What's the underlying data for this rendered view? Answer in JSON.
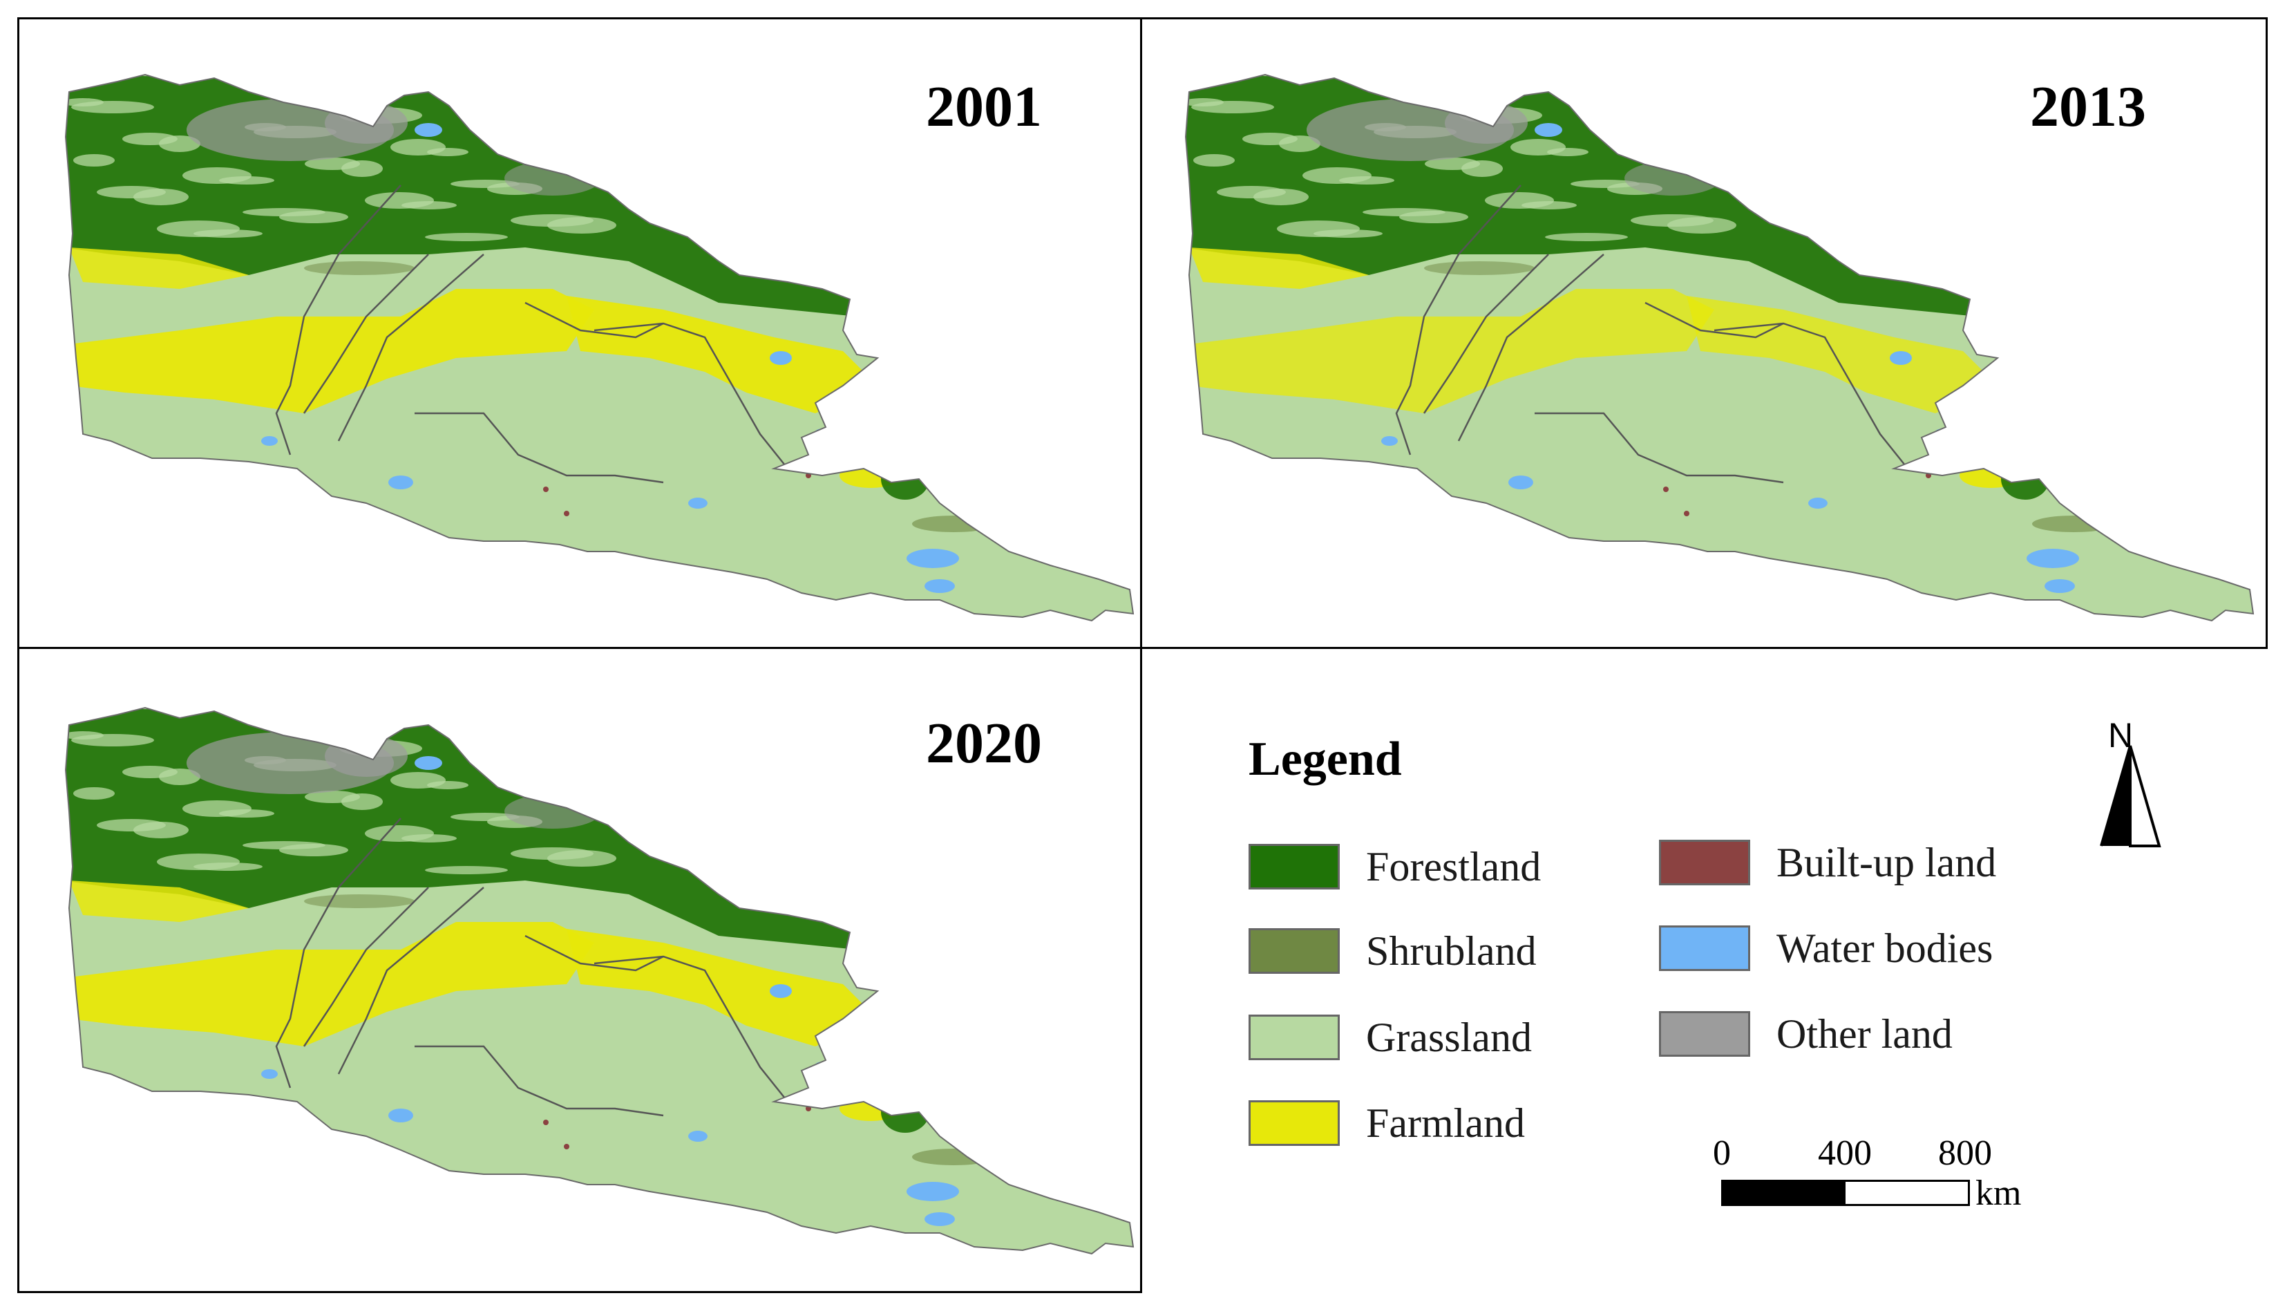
{
  "colors": {
    "forestland": "#1f7307",
    "shrubland": "#6f8843",
    "grassland": "#b7d9a1",
    "farmland": "#e7e80a",
    "built_up": "#8b4241",
    "water": "#70b4f6",
    "other": "#9c9c9c"
  },
  "panels": [
    {
      "year": "2001"
    },
    {
      "year": "2013"
    },
    {
      "year": "2020"
    }
  ],
  "legend": {
    "title": "Legend",
    "items": [
      {
        "label": "Forestland",
        "color_key": "forestland",
        "icon": "forestland-swatch"
      },
      {
        "label": "Shrubland",
        "color_key": "shrubland",
        "icon": "shrubland-swatch"
      },
      {
        "label": "Grassland",
        "color_key": "grassland",
        "icon": "grassland-swatch"
      },
      {
        "label": "Farmland",
        "color_key": "farmland",
        "icon": "farmland-swatch"
      },
      {
        "label": "Built-up land",
        "color_key": "built_up",
        "icon": "built-up-swatch"
      },
      {
        "label": "Water bodies",
        "color_key": "water",
        "icon": "water-swatch"
      },
      {
        "label": "Other land",
        "color_key": "other",
        "icon": "other-land-swatch"
      }
    ]
  },
  "north_arrow": {
    "label": "N",
    "icon": "north-arrow-icon"
  },
  "scale_bar": {
    "ticks": [
      "0",
      "400",
      "800"
    ],
    "unit": "km"
  }
}
